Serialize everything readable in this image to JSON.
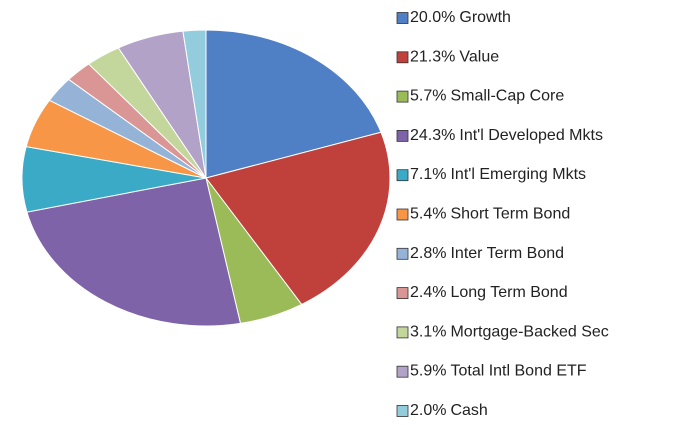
{
  "chart_data": {
    "type": "pie",
    "categories": [
      "Growth",
      "Value",
      "Small-Cap Core",
      "Int'l Developed Mkts",
      "Int'l Emerging Mkts",
      "Short Term Bond",
      "Inter Term Bond",
      "Long Term Bond",
      "Mortgage-Backed Sec",
      "Total Intl Bond ETF",
      "Cash"
    ],
    "values": [
      20.0,
      21.3,
      5.7,
      24.3,
      7.1,
      5.4,
      2.8,
      2.4,
      3.1,
      5.9,
      2.0
    ],
    "value_labels": [
      "20.0%",
      "21.3%",
      "5.7%",
      "24.3%",
      "7.1%",
      "5.4%",
      "2.8%",
      "2.4%",
      "3.1%",
      "5.9%",
      "2.0%"
    ],
    "colors": [
      "#4f7fc4",
      "#c0413c",
      "#9bbb59",
      "#7f63a8",
      "#3aaac6",
      "#f79646",
      "#95b3d7",
      "#d99694",
      "#c3d69b",
      "#b3a2c7",
      "#93cddd"
    ],
    "legend": "right"
  }
}
